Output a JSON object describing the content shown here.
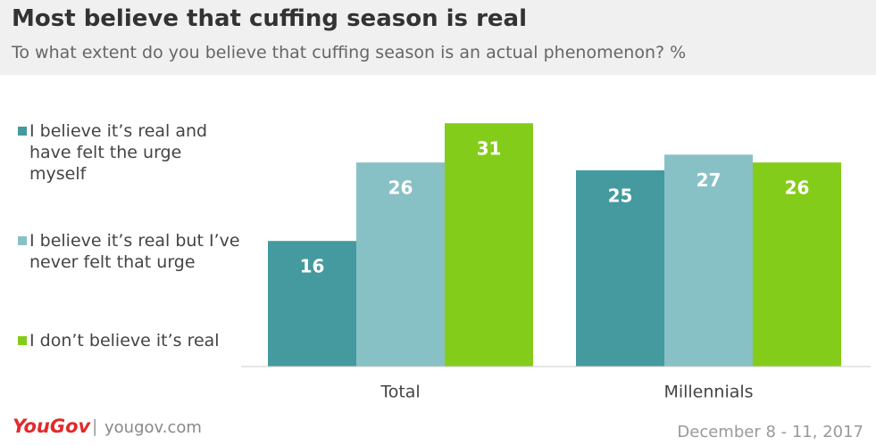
{
  "chart_data": {
    "type": "bar",
    "title": "Most believe that cuffing season is real",
    "subtitle": "To what extent do you believe that cuffing season is an actual phenomenon? %",
    "categories": [
      "Total",
      "Millennials"
    ],
    "series": [
      {
        "name": "I believe it’s real and have felt the urge myself",
        "color": "#449a9e",
        "values": [
          16,
          25
        ]
      },
      {
        "name": "I believe it’s real but I’ve never felt that urge",
        "color": "#88c1c5",
        "values": [
          26,
          27
        ]
      },
      {
        "name": "I don’t believe it’s real",
        "color": "#84cc1a",
        "values": [
          31,
          26
        ]
      }
    ],
    "legend": "left"
  },
  "footer": {
    "brand": "YouGov",
    "website": "yougov.com",
    "date": "December 8 - 11, 2017"
  }
}
